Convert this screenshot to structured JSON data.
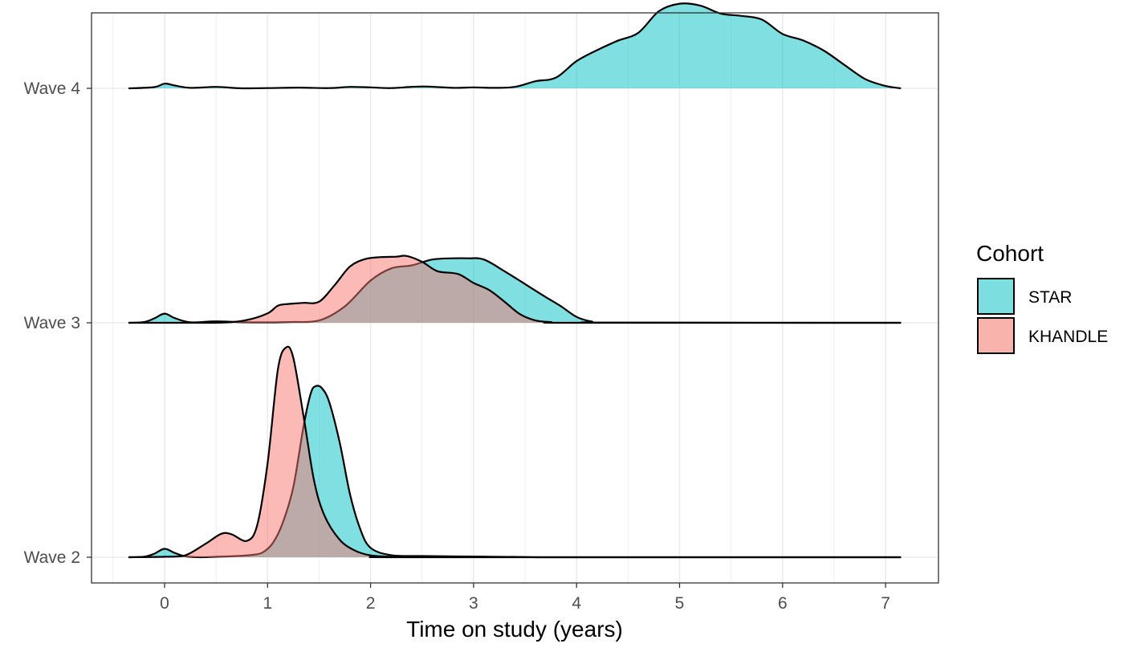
{
  "chart_data": {
    "type": "ridgeline",
    "title": "",
    "xlabel": "Time on study (years)",
    "ylabel": "",
    "xlim": [
      -0.7,
      7.5
    ],
    "x_ticks": [
      0,
      1,
      2,
      3,
      4,
      5,
      6,
      7
    ],
    "x_tick_labels": [
      "0",
      "1",
      "2",
      "3",
      "4",
      "5",
      "6",
      "7"
    ],
    "categories": [
      "Wave 2",
      "Wave 3",
      "Wave 4"
    ],
    "grid": true,
    "legend": {
      "title": "Cohort",
      "position": "right",
      "entries": [
        {
          "label": "STAR",
          "color": "#7ddedf"
        },
        {
          "label": "KHANDLE",
          "color": "#f8b3ad"
        }
      ]
    },
    "series": [
      {
        "name": "STAR",
        "color": "#00bfc4",
        "ridges": [
          {
            "category": "Wave 2",
            "points": [
              [
                -0.35,
                0
              ],
              [
                -0.2,
                0.002
              ],
              [
                -0.1,
                0.015
              ],
              [
                0,
                0.036
              ],
              [
                0.1,
                0.018
              ],
              [
                0.2,
                0.004
              ],
              [
                0.35,
                0
              ],
              [
                0.5,
                0.002
              ],
              [
                0.7,
                0.005
              ],
              [
                0.85,
                0.01
              ],
              [
                0.95,
                0.02
              ],
              [
                1.05,
                0.06
              ],
              [
                1.15,
                0.15
              ],
              [
                1.25,
                0.3
              ],
              [
                1.35,
                0.56
              ],
              [
                1.42,
                0.7
              ],
              [
                1.47,
                0.73
              ],
              [
                1.53,
                0.72
              ],
              [
                1.6,
                0.66
              ],
              [
                1.7,
                0.49
              ],
              [
                1.8,
                0.27
              ],
              [
                1.9,
                0.12
              ],
              [
                2.0,
                0.04
              ],
              [
                2.2,
                0.009
              ],
              [
                2.5,
                0.005
              ],
              [
                3.0,
                0.003
              ],
              [
                3.5,
                0.001
              ],
              [
                4.0,
                0
              ],
              [
                7.15,
                0
              ]
            ]
          },
          {
            "category": "Wave 3",
            "points": [
              [
                -0.35,
                0
              ],
              [
                -0.2,
                0.003
              ],
              [
                -0.1,
                0.019
              ],
              [
                0,
                0.039
              ],
              [
                0.1,
                0.02
              ],
              [
                0.25,
                0.002
              ],
              [
                0.5,
                0.006
              ],
              [
                0.8,
                0.002
              ],
              [
                1.2,
                0.003
              ],
              [
                1.5,
                0.01
              ],
              [
                1.75,
                0.07
              ],
              [
                2.0,
                0.18
              ],
              [
                2.2,
                0.232
              ],
              [
                2.4,
                0.245
              ],
              [
                2.6,
                0.27
              ],
              [
                2.8,
                0.275
              ],
              [
                2.95,
                0.275
              ],
              [
                3.1,
                0.27
              ],
              [
                3.3,
                0.22
              ],
              [
                3.5,
                0.165
              ],
              [
                3.7,
                0.11
              ],
              [
                3.85,
                0.07
              ],
              [
                4.0,
                0.025
              ],
              [
                4.15,
                0.005
              ],
              [
                4.3,
                0.001
              ],
              [
                7.15,
                0
              ]
            ]
          },
          {
            "category": "Wave 4",
            "points": [
              [
                -0.35,
                0
              ],
              [
                -0.1,
                0.005
              ],
              [
                0,
                0.02
              ],
              [
                0.1,
                0.012
              ],
              [
                0.25,
                0.002
              ],
              [
                0.5,
                0.006
              ],
              [
                0.75,
                0
              ],
              [
                1,
                0.001
              ],
              [
                1.3,
                0.003
              ],
              [
                1.6,
                0.001
              ],
              [
                1.8,
                0.006
              ],
              [
                2.0,
                0.004
              ],
              [
                2.2,
                0.001
              ],
              [
                2.5,
                0.008
              ],
              [
                2.8,
                0.002
              ],
              [
                3.0,
                0.004
              ],
              [
                3.2,
                0.002
              ],
              [
                3.4,
                0.006
              ],
              [
                3.6,
                0.03
              ],
              [
                3.8,
                0.046
              ],
              [
                4.0,
                0.116
              ],
              [
                4.2,
                0.163
              ],
              [
                4.4,
                0.203
              ],
              [
                4.6,
                0.237
              ],
              [
                4.8,
                0.329
              ],
              [
                5.0,
                0.361
              ],
              [
                5.2,
                0.353
              ],
              [
                5.4,
                0.319
              ],
              [
                5.6,
                0.309
              ],
              [
                5.8,
                0.293
              ],
              [
                6.0,
                0.232
              ],
              [
                6.2,
                0.204
              ],
              [
                6.4,
                0.161
              ],
              [
                6.6,
                0.1
              ],
              [
                6.8,
                0.04
              ],
              [
                7.0,
                0.01
              ],
              [
                7.15,
                0
              ]
            ]
          }
        ]
      },
      {
        "name": "KHANDLE",
        "color": "#f8766d",
        "ridges": [
          {
            "category": "Wave 2",
            "points": [
              [
                -0.35,
                0
              ],
              [
                0,
                0.002
              ],
              [
                0.2,
                0.008
              ],
              [
                0.4,
                0.058
              ],
              [
                0.55,
                0.1
              ],
              [
                0.65,
                0.098
              ],
              [
                0.8,
                0.07
              ],
              [
                0.9,
                0.138
              ],
              [
                1.0,
                0.4
              ],
              [
                1.1,
                0.8
              ],
              [
                1.18,
                0.895
              ],
              [
                1.25,
                0.85
              ],
              [
                1.35,
                0.6
              ],
              [
                1.45,
                0.33
              ],
              [
                1.55,
                0.18
              ],
              [
                1.7,
                0.075
              ],
              [
                1.85,
                0.028
              ],
              [
                2.0,
                0.008
              ],
              [
                2.2,
                0.002
              ],
              [
                2.4,
                0
              ],
              [
                7.15,
                0
              ]
            ]
          },
          {
            "category": "Wave 3",
            "points": [
              [
                -0.35,
                0
              ],
              [
                0.5,
                0
              ],
              [
                0.8,
                0.012
              ],
              [
                1.0,
                0.04
              ],
              [
                1.1,
                0.073
              ],
              [
                1.2,
                0.08
              ],
              [
                1.35,
                0.085
              ],
              [
                1.5,
                0.09
              ],
              [
                1.65,
                0.16
              ],
              [
                1.8,
                0.24
              ],
              [
                1.95,
                0.272
              ],
              [
                2.1,
                0.28
              ],
              [
                2.25,
                0.282
              ],
              [
                2.35,
                0.285
              ],
              [
                2.5,
                0.26
              ],
              [
                2.65,
                0.22
              ],
              [
                2.85,
                0.208
              ],
              [
                3.0,
                0.17
              ],
              [
                3.15,
                0.14
              ],
              [
                3.3,
                0.09
              ],
              [
                3.45,
                0.037
              ],
              [
                3.6,
                0.01
              ],
              [
                3.75,
                0.003
              ],
              [
                4.0,
                0
              ],
              [
                7.15,
                0
              ]
            ]
          }
        ]
      }
    ]
  }
}
